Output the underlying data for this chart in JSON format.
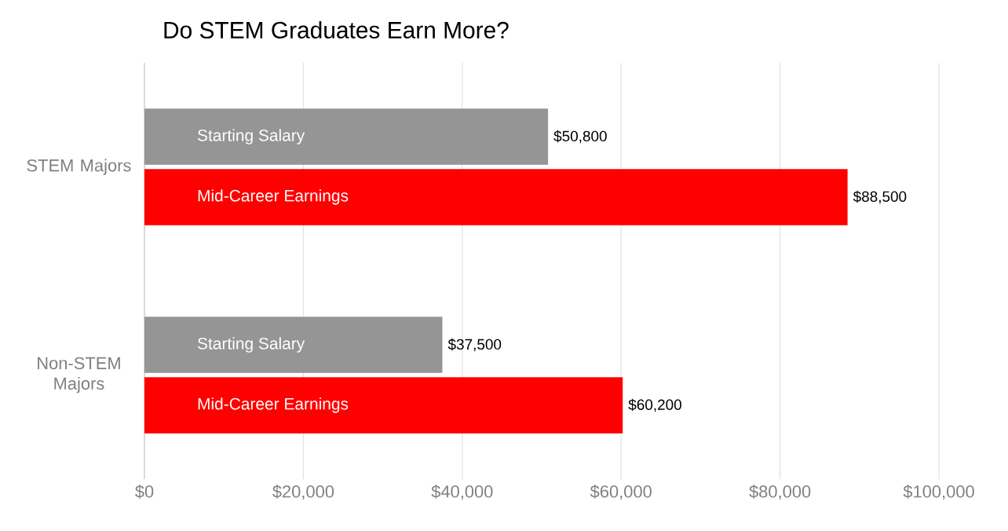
{
  "chart_data": {
    "type": "bar",
    "orientation": "horizontal",
    "title": "Do STEM Graduates Earn More?",
    "categories": [
      "STEM Majors",
      "Non-STEM Majors"
    ],
    "series": [
      {
        "name": "Starting Salary",
        "color": "#959595",
        "values": [
          50800,
          37500
        ],
        "value_labels": [
          "$50,800",
          "$37,500"
        ]
      },
      {
        "name": "Mid-Career Earnings",
        "color": "#ff0000",
        "values": [
          88500,
          60200
        ],
        "value_labels": [
          "$88,500",
          "$60,200"
        ]
      }
    ],
    "xlim": [
      0,
      100000
    ],
    "xticks": [
      {
        "value": 0,
        "label": "$0"
      },
      {
        "value": 20000,
        "label": "$20,000"
      },
      {
        "value": 40000,
        "label": "$40,000"
      },
      {
        "value": 60000,
        "label": "$60,000"
      },
      {
        "value": 80000,
        "label": "$80,000"
      },
      {
        "value": 100000,
        "label": "$100,000"
      }
    ],
    "grid": "x"
  }
}
